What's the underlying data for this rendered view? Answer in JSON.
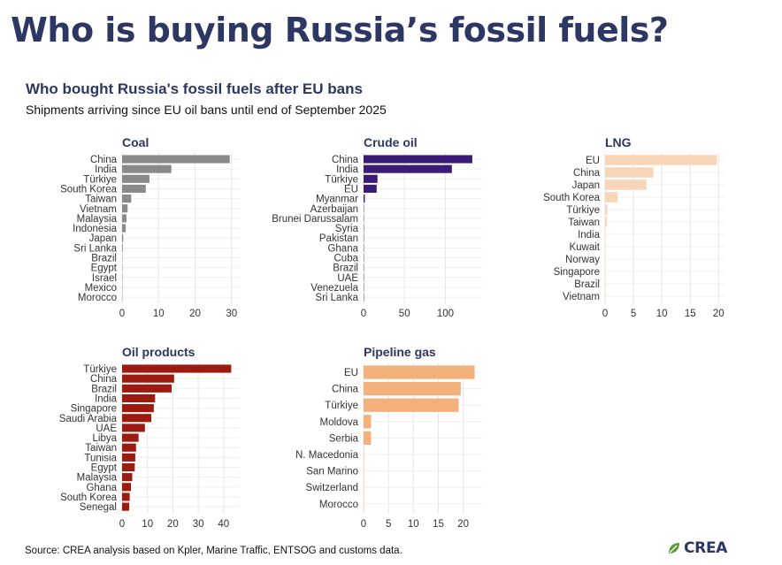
{
  "header": {
    "title": "Who is buying Russia’s fossil fuels?",
    "subtitle": "Who bought Russia's fossil fuels after EU bans",
    "description": "Shipments arriving since EU oil bans until end of September 2025"
  },
  "footer": {
    "source": "Source: CREA analysis based on Kpler, Marine Traffic, ENTSOG and customs data.",
    "logo_text": "CREA"
  },
  "colors": {
    "title": "#2d3763",
    "coal": "#8a8a8a",
    "crude_oil": "#3a1c78",
    "lng": "#f7d5b6",
    "oil_products": "#9c1a10",
    "pipeline_gas": "#f2b07a",
    "logo_leaf": "#5a9a3c"
  },
  "chart_data": [
    {
      "id": "coal",
      "type": "bar",
      "orientation": "horizontal",
      "title": "Coal",
      "color": "#8a8a8a",
      "categories": [
        "China",
        "India",
        "Türkiye",
        "South Korea",
        "Taiwan",
        "Vietnam",
        "Malaysia",
        "Indonesia",
        "Japan",
        "Sri Lanka",
        "Brazil",
        "Egypt",
        "Israel",
        "Mexico",
        "Morocco"
      ],
      "values": [
        29.5,
        13.5,
        7.5,
        6.5,
        2.5,
        1.5,
        1.2,
        1.0,
        0.3,
        0.2,
        0.1,
        0.1,
        0.05,
        0.05,
        0.05
      ],
      "xlim": [
        0,
        32
      ],
      "ticks": [
        0,
        10,
        20,
        30
      ]
    },
    {
      "id": "crude_oil",
      "type": "bar",
      "orientation": "horizontal",
      "title": "Crude oil",
      "color": "#3a1c78",
      "categories": [
        "China",
        "India",
        "Türkiye",
        "EU",
        "Myanmar",
        "Azerbaijan",
        "Brunei Darussalam",
        "Syria",
        "Pakistan",
        "Ghana",
        "Cuba",
        "Brazil",
        "UAE",
        "Venezuela",
        "Sri Lanka"
      ],
      "values": [
        133,
        108,
        17,
        16,
        1.5,
        0.3,
        0.3,
        0.3,
        0.3,
        0.2,
        0.2,
        0.2,
        0.2,
        0.1,
        0.1
      ],
      "xlim": [
        0,
        145
      ],
      "ticks": [
        0,
        50,
        100
      ]
    },
    {
      "id": "lng",
      "type": "bar",
      "orientation": "horizontal",
      "title": "LNG",
      "color": "#f7d5b6",
      "categories": [
        "EU",
        "China",
        "Japan",
        "South Korea",
        "Türkiye",
        "Taiwan",
        "India",
        "Kuwait",
        "Norway",
        "Singapore",
        "Brazil",
        "Vietnam"
      ],
      "values": [
        19.7,
        8.5,
        7.3,
        2.2,
        0.4,
        0.3,
        0.05,
        0.05,
        0.05,
        0.05,
        0.05,
        0.05
      ],
      "xlim": [
        0,
        21.2
      ],
      "ticks": [
        0,
        5,
        10,
        15,
        20
      ]
    },
    {
      "id": "oil_products",
      "type": "bar",
      "orientation": "horizontal",
      "title": "Oil products",
      "color": "#9c1a10",
      "categories": [
        "Türkiye",
        "China",
        "Brazil",
        "India",
        "Singapore",
        "Saudi Arabia",
        "UAE",
        "Libya",
        "Taiwan",
        "Tunisia",
        "Egypt",
        "Malaysia",
        "Ghana",
        "South Korea",
        "Senegal"
      ],
      "values": [
        43,
        20.5,
        19.5,
        13,
        12.5,
        11.5,
        9,
        6.5,
        5.5,
        5.2,
        5,
        4,
        3.5,
        3,
        2.8
      ],
      "xlim": [
        0,
        46
      ],
      "ticks": [
        0,
        10,
        20,
        30,
        40
      ]
    },
    {
      "id": "pipeline_gas",
      "type": "bar",
      "orientation": "horizontal",
      "title": "Pipeline gas",
      "color": "#f2b07a",
      "categories": [
        "EU",
        "China",
        "Türkiye",
        "Moldova",
        "Serbia",
        "N. Macedonia",
        "San Marino",
        "Switzerland",
        "Morocco"
      ],
      "values": [
        22.3,
        19.5,
        19.1,
        1.5,
        1.5,
        0.05,
        0.02,
        0.02,
        0.01
      ],
      "xlim": [
        0,
        23.8
      ],
      "ticks": [
        0,
        5,
        10,
        15,
        20
      ]
    }
  ]
}
